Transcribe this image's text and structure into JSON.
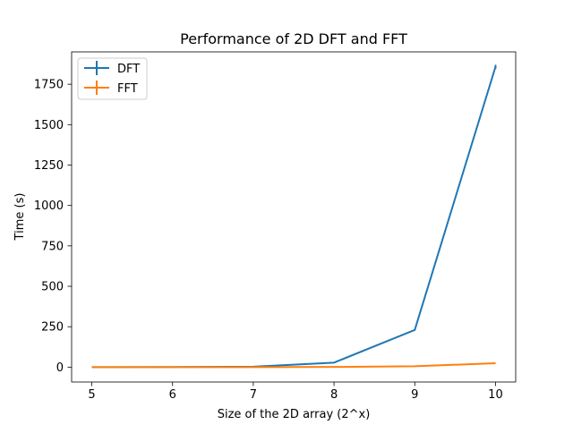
{
  "chart_data": {
    "type": "line",
    "title": "Performance of 2D DFT and FFT",
    "xlabel": "Size of the 2D array (2^x)",
    "ylabel": "Time (s)",
    "xlim": [
      4.75,
      10.25
    ],
    "ylim": [
      -92,
      1950
    ],
    "xticks": [
      5,
      6,
      7,
      8,
      9,
      10
    ],
    "yticks": [
      0,
      250,
      500,
      750,
      1000,
      1250,
      1500,
      1750
    ],
    "legend_position": "top-left",
    "grid": false,
    "series": [
      {
        "name": "DFT",
        "color": "#1f77b4",
        "x": [
          5,
          6,
          7,
          8,
          9,
          10
        ],
        "y": [
          0.1,
          0.4,
          2.5,
          28,
          230,
          1858
        ],
        "error": [
          0,
          0,
          0,
          0,
          0,
          12
        ]
      },
      {
        "name": "FFT",
        "color": "#ff7f0e",
        "x": [
          5,
          6,
          7,
          8,
          9,
          10
        ],
        "y": [
          0.05,
          0.1,
          0.3,
          1.2,
          5.5,
          24
        ],
        "error": [
          0,
          0,
          0,
          0,
          0,
          1
        ]
      }
    ]
  }
}
